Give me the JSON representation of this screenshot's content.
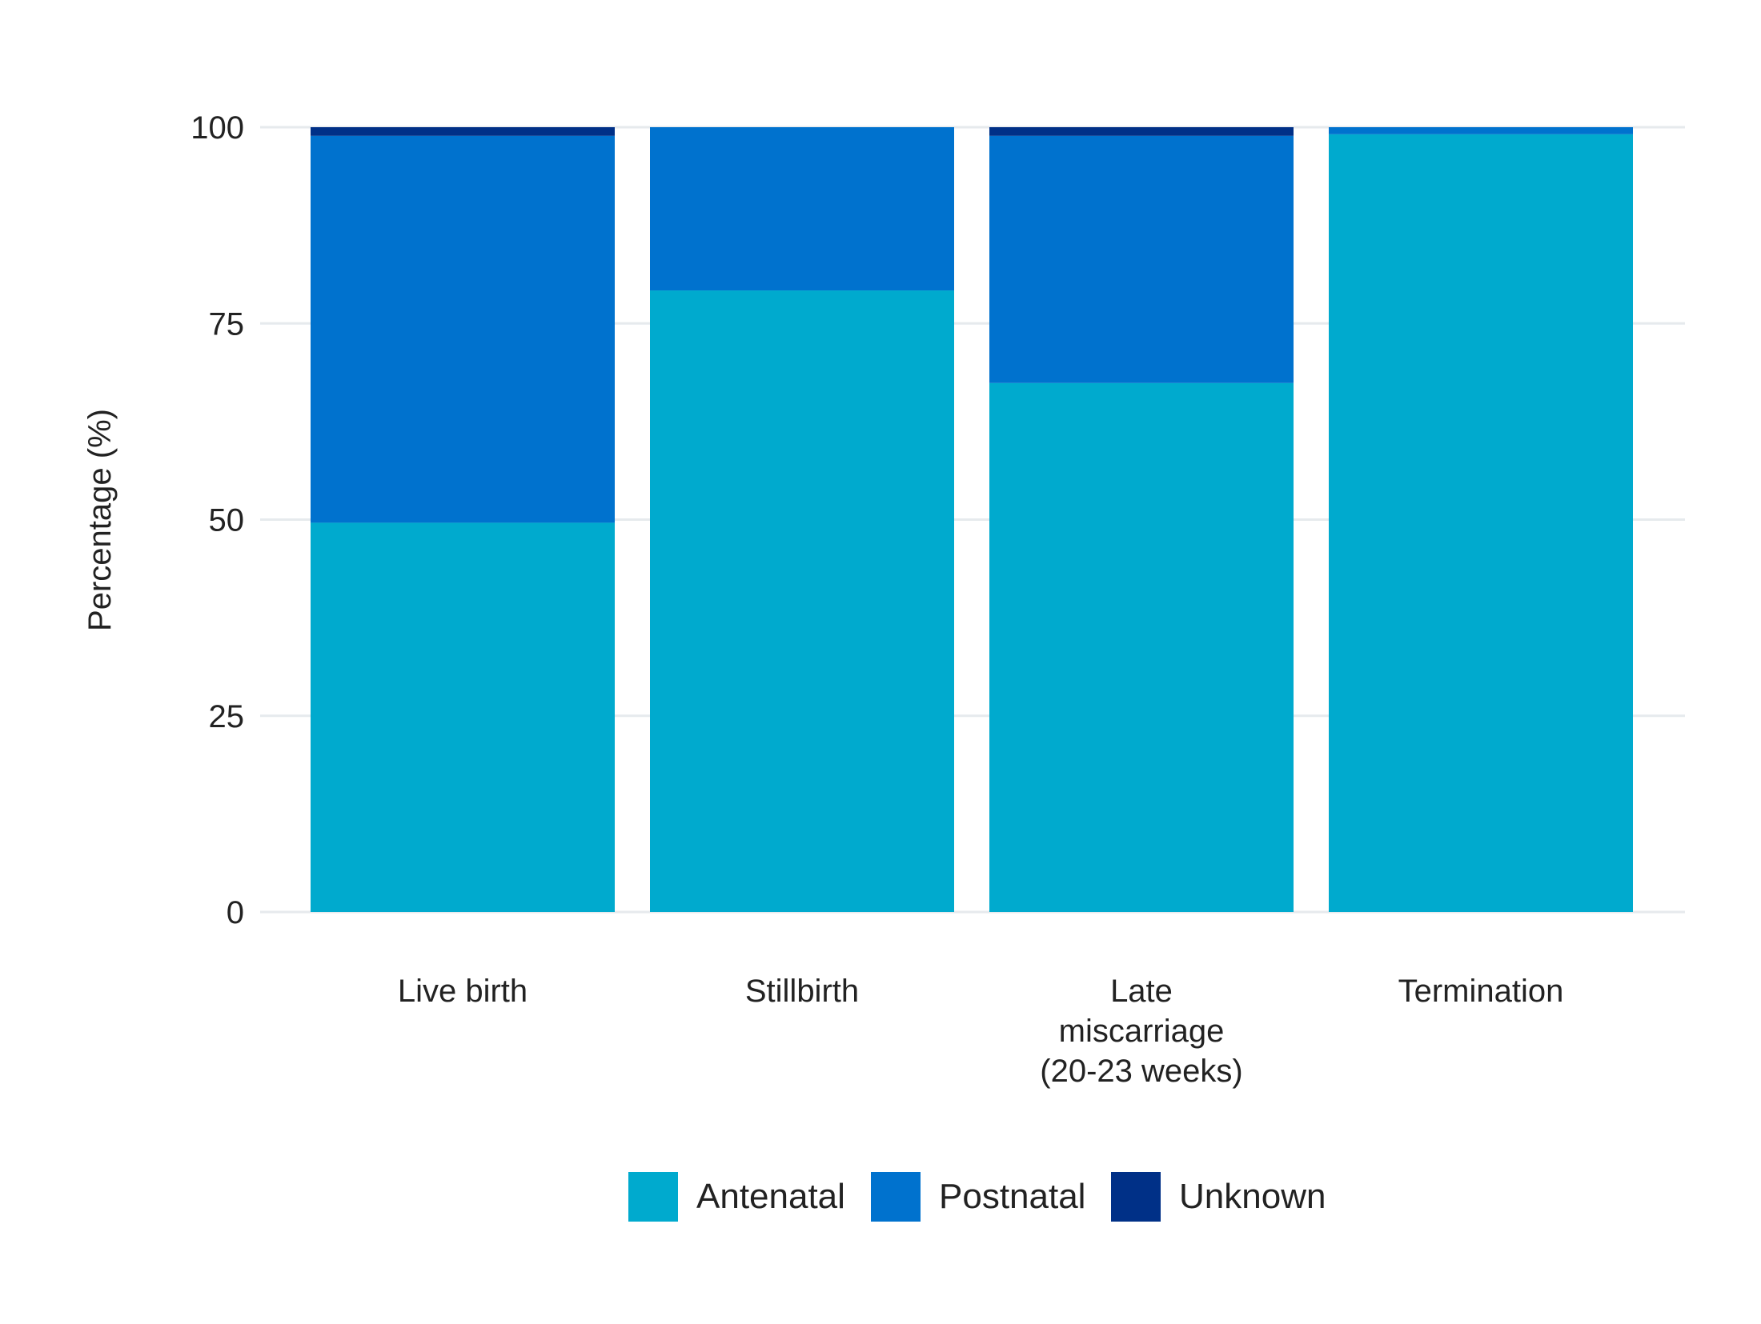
{
  "chart_data": {
    "type": "bar",
    "stacked": true,
    "title": "",
    "xlabel": "",
    "ylabel": "Percentage (%)",
    "ylim": [
      0,
      100
    ],
    "yticks": [
      "0",
      "25",
      "50",
      "75",
      "100"
    ],
    "grid": true,
    "legend_position": "bottom",
    "categories": [
      [
        "Live birth"
      ],
      [
        "Stillbirth"
      ],
      [
        "Late",
        "miscarriage",
        "(20-23 weeks)"
      ],
      [
        "Termination"
      ]
    ],
    "series": [
      {
        "name": "Antenatal",
        "color": "#00AACE",
        "values": [
          49.6,
          79.2,
          67.4,
          99.1
        ]
      },
      {
        "name": "Postnatal",
        "color": "#0072CE",
        "values": [
          49.3,
          20.8,
          31.5,
          0.9
        ]
      },
      {
        "name": "Unknown",
        "color": "#003087",
        "values": [
          1.1,
          0.0,
          1.1,
          0.0
        ]
      }
    ]
  }
}
